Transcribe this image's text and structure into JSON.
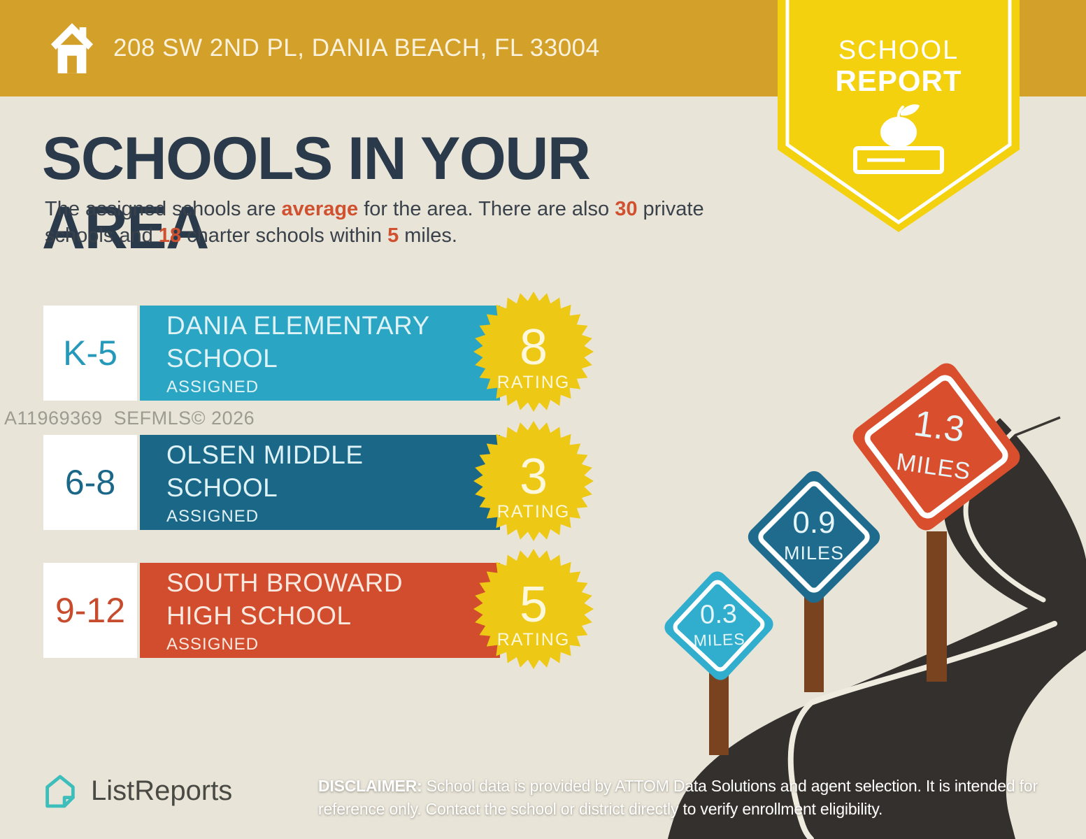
{
  "header": {
    "address": "208 SW 2ND PL, DANIA BEACH, FL 33004"
  },
  "ribbon": {
    "line1": "SCHOOL",
    "line2": "REPORT",
    "icon": "apple-on-book-icon"
  },
  "title": "SCHOOLS IN YOUR AREA",
  "intro": {
    "pre": "The assigned schools are ",
    "quality": "average",
    "mid1": " for the area. There are also ",
    "num_private": "30",
    "mid2": " private schools and ",
    "num_charter": "18",
    "mid3": " charter schools within ",
    "num_miles": "5",
    "post": " miles."
  },
  "watermark": "A11969369  SEFMLS© 2026",
  "schools": [
    {
      "grades": "K-5",
      "name": "DANIA ELEMENTARY SCHOOL",
      "status": "ASSIGNED",
      "rating": "8",
      "rating_label": "RATING",
      "distance": "0.3",
      "distance_label": "MILES",
      "color": "#2BA5C4"
    },
    {
      "grades": "6-8",
      "name": "OLSEN MIDDLE SCHOOL",
      "status": "ASSIGNED",
      "rating": "3",
      "rating_label": "RATING",
      "distance": "0.9",
      "distance_label": "MILES",
      "color": "#1A6787"
    },
    {
      "grades": "9-12",
      "name": "SOUTH BROWARD HIGH SCHOOL",
      "status": "ASSIGNED",
      "rating": "5",
      "rating_label": "RATING",
      "distance": "1.3",
      "distance_label": "MILES",
      "color": "#D14D2D"
    }
  ],
  "footer": {
    "logo_text": "ListReports",
    "disclaimer_label": "DISCLAIMER:",
    "disclaimer_text": " School data is provided by ATTOM Data Solutions and agent selection. It is intended for reference only. Contact the school or district directly to verify enrollment eligibility."
  },
  "colors": {
    "background": "#E9E4D8",
    "header_gold": "#D3A02A",
    "ribbon_yellow": "#F4D10F",
    "badge_yellow": "#EDC814",
    "title_navy": "#2B3A4B",
    "accent_orange": "#D0512F",
    "teal": "#2BA5C4",
    "dark_blue": "#1A6787",
    "red": "#D14D2D",
    "road": "#33302D",
    "post_brown": "#7A431F",
    "logo_teal": "#3DBEBB"
  }
}
